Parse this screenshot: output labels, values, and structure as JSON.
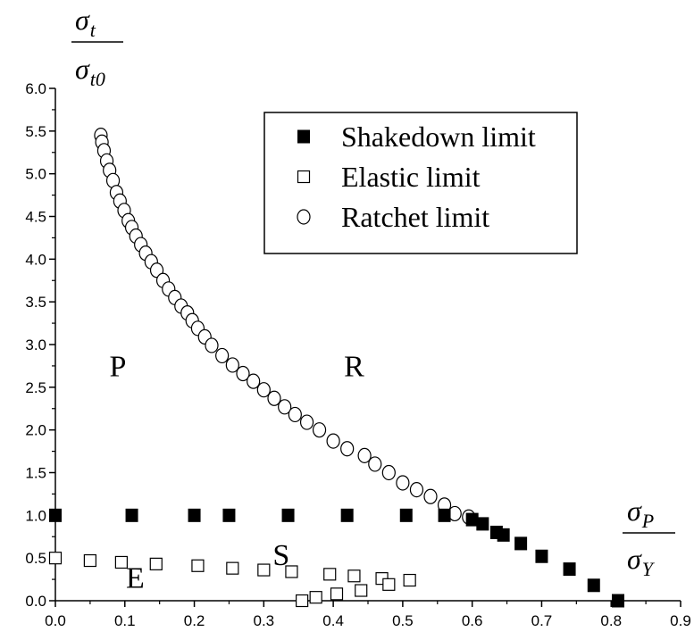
{
  "chart_data": {
    "type": "scatter",
    "xlabel": {
      "numerator": "σ",
      "numerator_sub": "P",
      "denominator": "σ",
      "denominator_sub": "Y"
    },
    "ylabel": {
      "numerator": "σ",
      "numerator_sub": "t",
      "denominator": "σ",
      "denominator_sub": "t0"
    },
    "xlim": [
      0.0,
      0.9
    ],
    "ylim": [
      0.0,
      6.0
    ],
    "x_ticks": [
      "0.0",
      "0.1",
      "0.2",
      "0.3",
      "0.4",
      "0.5",
      "0.6",
      "0.7",
      "0.8",
      "0.9"
    ],
    "y_ticks": [
      "0.0",
      "0.5",
      "1.0",
      "1.5",
      "2.0",
      "2.5",
      "3.0",
      "3.5",
      "4.0",
      "4.5",
      "5.0",
      "5.5",
      "6.0"
    ],
    "grid": false,
    "legend_position": "top-right",
    "regions": [
      {
        "label": "P",
        "x": 0.09,
        "y": 2.63
      },
      {
        "label": "R",
        "x": 0.43,
        "y": 2.63
      },
      {
        "label": "S",
        "x": 0.325,
        "y": 0.42
      },
      {
        "label": "E",
        "x": 0.115,
        "y": 0.15
      }
    ],
    "series": [
      {
        "name": "Shakedown limit",
        "marker": "filled-square",
        "points": [
          [
            0.0,
            1.0
          ],
          [
            0.11,
            1.0
          ],
          [
            0.2,
            1.0
          ],
          [
            0.25,
            1.0
          ],
          [
            0.335,
            1.0
          ],
          [
            0.42,
            1.0
          ],
          [
            0.505,
            1.0
          ],
          [
            0.56,
            1.0
          ],
          [
            0.6,
            0.95
          ],
          [
            0.615,
            0.9
          ],
          [
            0.635,
            0.8
          ],
          [
            0.645,
            0.77
          ],
          [
            0.67,
            0.67
          ],
          [
            0.7,
            0.52
          ],
          [
            0.74,
            0.37
          ],
          [
            0.775,
            0.18
          ],
          [
            0.81,
            0.0
          ]
        ]
      },
      {
        "name": "Elastic limit",
        "marker": "open-square",
        "points": [
          [
            0.0,
            0.5
          ],
          [
            0.05,
            0.47
          ],
          [
            0.095,
            0.45
          ],
          [
            0.145,
            0.43
          ],
          [
            0.205,
            0.41
          ],
          [
            0.255,
            0.38
          ],
          [
            0.3,
            0.36
          ],
          [
            0.34,
            0.34
          ],
          [
            0.395,
            0.31
          ],
          [
            0.43,
            0.29
          ],
          [
            0.47,
            0.26
          ],
          [
            0.51,
            0.24
          ],
          [
            0.48,
            0.19
          ],
          [
            0.44,
            0.12
          ],
          [
            0.405,
            0.08
          ],
          [
            0.375,
            0.04
          ],
          [
            0.355,
            0.0
          ]
        ]
      },
      {
        "name": "Ratchet limit",
        "marker": "open-circle",
        "points": [
          [
            0.0655,
            5.45
          ],
          [
            0.067,
            5.37
          ],
          [
            0.07,
            5.27
          ],
          [
            0.074,
            5.15
          ],
          [
            0.078,
            5.04
          ],
          [
            0.083,
            4.92
          ],
          [
            0.088,
            4.78
          ],
          [
            0.093,
            4.68
          ],
          [
            0.099,
            4.57
          ],
          [
            0.105,
            4.45
          ],
          [
            0.11,
            4.37
          ],
          [
            0.116,
            4.27
          ],
          [
            0.123,
            4.17
          ],
          [
            0.13,
            4.07
          ],
          [
            0.138,
            3.97
          ],
          [
            0.146,
            3.87
          ],
          [
            0.155,
            3.75
          ],
          [
            0.163,
            3.65
          ],
          [
            0.172,
            3.55
          ],
          [
            0.181,
            3.45
          ],
          [
            0.19,
            3.37
          ],
          [
            0.197,
            3.28
          ],
          [
            0.205,
            3.19
          ],
          [
            0.215,
            3.09
          ],
          [
            0.225,
            2.99
          ],
          [
            0.24,
            2.87
          ],
          [
            0.255,
            2.76
          ],
          [
            0.27,
            2.66
          ],
          [
            0.285,
            2.57
          ],
          [
            0.3,
            2.47
          ],
          [
            0.315,
            2.37
          ],
          [
            0.33,
            2.27
          ],
          [
            0.345,
            2.18
          ],
          [
            0.362,
            2.09
          ],
          [
            0.38,
            2.0
          ],
          [
            0.4,
            1.87
          ],
          [
            0.42,
            1.78
          ],
          [
            0.445,
            1.7
          ],
          [
            0.46,
            1.6
          ],
          [
            0.48,
            1.5
          ],
          [
            0.5,
            1.38
          ],
          [
            0.52,
            1.3
          ],
          [
            0.54,
            1.22
          ],
          [
            0.56,
            1.12
          ],
          [
            0.575,
            1.02
          ],
          [
            0.595,
            0.98
          ]
        ]
      }
    ]
  }
}
